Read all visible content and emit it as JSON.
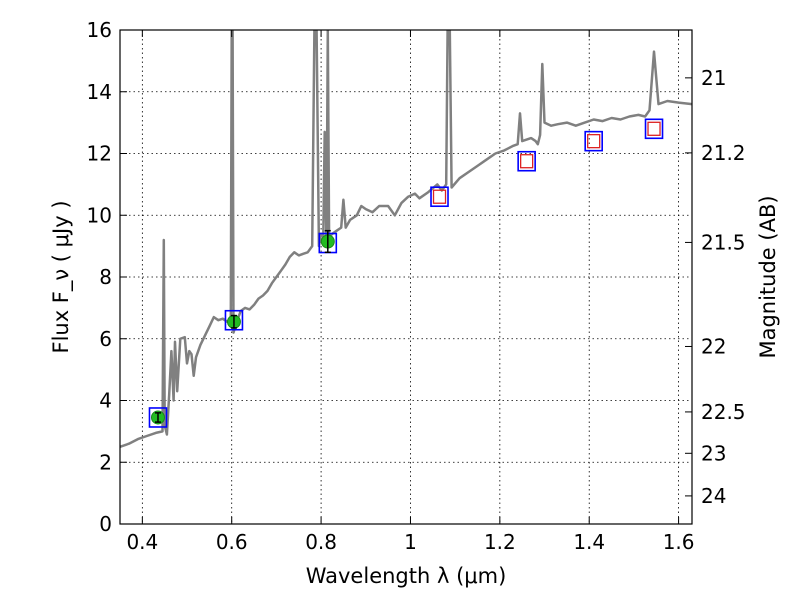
{
  "chart_data": {
    "type": "line",
    "xlabel": "Wavelength  λ (μm)",
    "ylabel": "Flux  F_ν  ( μJy )",
    "ylabel_right": "Magnitude (AB)",
    "xlim": [
      0.35,
      1.63
    ],
    "ylim": [
      0,
      16
    ],
    "xticks": [
      0.4,
      0.6,
      0.8,
      1.0,
      1.2,
      1.4,
      1.6
    ],
    "xtick_labels": [
      "0.4",
      "0.6",
      "0.8",
      "1",
      "1.2",
      "1.4",
      "1.6"
    ],
    "yticks": [
      0,
      2,
      4,
      6,
      8,
      10,
      12,
      14,
      16
    ],
    "ytick_labels": [
      "0",
      "2",
      "4",
      "6",
      "8",
      "10",
      "12",
      "14",
      "16"
    ],
    "right_ticks": [
      {
        "label": "21",
        "flux": 14.45
      },
      {
        "label": "21.2",
        "flux": 12.02
      },
      {
        "label": "21.5",
        "flux": 9.12
      },
      {
        "label": "22",
        "flux": 5.75
      },
      {
        "label": "22.5",
        "flux": 3.63
      },
      {
        "label": "23",
        "flux": 2.29
      },
      {
        "label": "24",
        "flux": 0.91
      }
    ],
    "grid": true,
    "colors": {
      "model": "#808080",
      "model_photometry": "#0000ff",
      "observed": "#22bb22",
      "predicted": "#dd2222",
      "errorbar": "#000000"
    },
    "series": [
      {
        "role": "model_sed",
        "points": [
          [
            0.35,
            2.5
          ],
          [
            0.37,
            2.6
          ],
          [
            0.39,
            2.75
          ],
          [
            0.41,
            2.85
          ],
          [
            0.43,
            2.95
          ],
          [
            0.445,
            3.0
          ],
          [
            0.448,
            9.2
          ],
          [
            0.45,
            3.2
          ],
          [
            0.455,
            2.9
          ],
          [
            0.46,
            4.2
          ],
          [
            0.465,
            5.6
          ],
          [
            0.47,
            4.0
          ],
          [
            0.473,
            5.9
          ],
          [
            0.478,
            4.3
          ],
          [
            0.485,
            6.0
          ],
          [
            0.495,
            6.05
          ],
          [
            0.5,
            5.2
          ],
          [
            0.505,
            5.6
          ],
          [
            0.51,
            5.5
          ],
          [
            0.515,
            4.8
          ],
          [
            0.52,
            5.4
          ],
          [
            0.53,
            5.8
          ],
          [
            0.54,
            6.1
          ],
          [
            0.55,
            6.4
          ],
          [
            0.56,
            6.7
          ],
          [
            0.57,
            6.6
          ],
          [
            0.58,
            6.65
          ],
          [
            0.59,
            6.55
          ],
          [
            0.598,
            6.6
          ],
          [
            0.6,
            16.0
          ],
          [
            0.602,
            16.0
          ],
          [
            0.604,
            6.2
          ],
          [
            0.61,
            6.5
          ],
          [
            0.62,
            6.9
          ],
          [
            0.63,
            7.0
          ],
          [
            0.64,
            6.95
          ],
          [
            0.65,
            7.1
          ],
          [
            0.66,
            7.3
          ],
          [
            0.67,
            7.4
          ],
          [
            0.68,
            7.55
          ],
          [
            0.69,
            7.8
          ],
          [
            0.7,
            8.0
          ],
          [
            0.71,
            8.2
          ],
          [
            0.72,
            8.4
          ],
          [
            0.73,
            8.65
          ],
          [
            0.74,
            8.8
          ],
          [
            0.75,
            8.7
          ],
          [
            0.76,
            8.75
          ],
          [
            0.77,
            8.8
          ],
          [
            0.78,
            9.0
          ],
          [
            0.785,
            16.0
          ],
          [
            0.79,
            16.0
          ],
          [
            0.795,
            9.0
          ],
          [
            0.8,
            9.4
          ],
          [
            0.805,
            9.3
          ],
          [
            0.808,
            12.7
          ],
          [
            0.812,
            9.0
          ],
          [
            0.815,
            16.0
          ],
          [
            0.818,
            9.3
          ],
          [
            0.825,
            9.4
          ],
          [
            0.835,
            9.5
          ],
          [
            0.845,
            9.6
          ],
          [
            0.85,
            10.5
          ],
          [
            0.855,
            9.6
          ],
          [
            0.865,
            9.85
          ],
          [
            0.88,
            10.0
          ],
          [
            0.89,
            10.3
          ],
          [
            0.9,
            10.2
          ],
          [
            0.915,
            10.1
          ],
          [
            0.93,
            10.3
          ],
          [
            0.95,
            10.3
          ],
          [
            0.965,
            10.0
          ],
          [
            0.98,
            10.4
          ],
          [
            0.995,
            10.6
          ],
          [
            1.01,
            10.7
          ],
          [
            1.02,
            10.55
          ],
          [
            1.04,
            10.75
          ],
          [
            1.06,
            11.0
          ],
          [
            1.07,
            10.8
          ],
          [
            1.08,
            11.0
          ],
          [
            1.083,
            16.0
          ],
          [
            1.088,
            16.0
          ],
          [
            1.092,
            10.9
          ],
          [
            1.11,
            11.2
          ],
          [
            1.13,
            11.4
          ],
          [
            1.15,
            11.6
          ],
          [
            1.17,
            11.8
          ],
          [
            1.19,
            12.0
          ],
          [
            1.21,
            12.1
          ],
          [
            1.23,
            12.25
          ],
          [
            1.24,
            12.3
          ],
          [
            1.245,
            13.3
          ],
          [
            1.25,
            12.4
          ],
          [
            1.27,
            12.5
          ],
          [
            1.28,
            12.4
          ],
          [
            1.285,
            12.3
          ],
          [
            1.29,
            12.6
          ],
          [
            1.295,
            14.9
          ],
          [
            1.3,
            13.0
          ],
          [
            1.315,
            12.9
          ],
          [
            1.33,
            12.95
          ],
          [
            1.35,
            13.0
          ],
          [
            1.37,
            12.9
          ],
          [
            1.39,
            13.0
          ],
          [
            1.41,
            13.1
          ],
          [
            1.43,
            13.05
          ],
          [
            1.45,
            13.15
          ],
          [
            1.47,
            13.1
          ],
          [
            1.49,
            13.2
          ],
          [
            1.51,
            13.25
          ],
          [
            1.525,
            13.2
          ],
          [
            1.535,
            13.4
          ],
          [
            1.545,
            15.3
          ],
          [
            1.555,
            13.6
          ],
          [
            1.575,
            13.7
          ],
          [
            1.6,
            13.65
          ],
          [
            1.63,
            13.6
          ]
        ]
      },
      {
        "role": "model_photometry",
        "points": [
          [
            0.435,
            3.45
          ],
          [
            0.605,
            6.6
          ],
          [
            0.815,
            9.1
          ],
          [
            1.065,
            10.6
          ],
          [
            1.26,
            11.75
          ],
          [
            1.41,
            12.4
          ],
          [
            1.545,
            12.8
          ]
        ]
      },
      {
        "role": "observed_photometry",
        "points": [
          {
            "x": 0.435,
            "y": 3.45,
            "err": 0.15
          },
          {
            "x": 0.605,
            "y": 6.55,
            "err": 0.2
          },
          {
            "x": 0.815,
            "y": 9.15,
            "err": 0.35
          }
        ]
      },
      {
        "role": "predicted_photometry",
        "points": [
          [
            1.065,
            10.6
          ],
          [
            1.26,
            11.75
          ],
          [
            1.41,
            12.4
          ],
          [
            1.545,
            12.8
          ]
        ]
      }
    ]
  }
}
